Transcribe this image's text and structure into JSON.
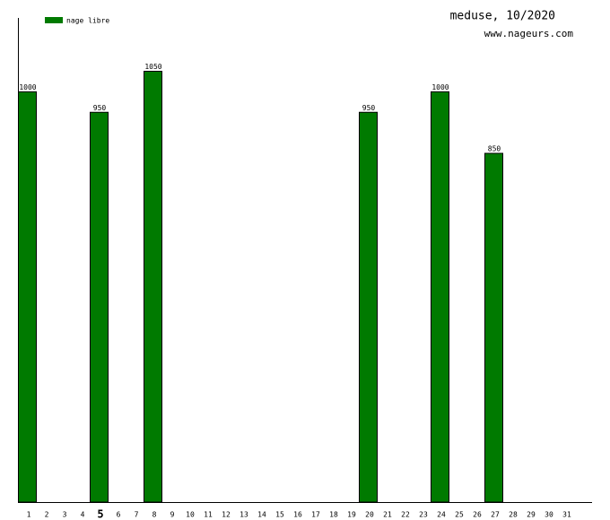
{
  "chart_data": {
    "type": "bar",
    "title": "meduse, 10/2020",
    "subtitle": "www.nageurs.com",
    "categories": [
      "1",
      "2",
      "3",
      "4",
      "5",
      "6",
      "7",
      "8",
      "9",
      "10",
      "11",
      "12",
      "13",
      "14",
      "15",
      "16",
      "17",
      "18",
      "19",
      "20",
      "21",
      "22",
      "23",
      "24",
      "25",
      "26",
      "27",
      "28",
      "29",
      "30",
      "31"
    ],
    "series": [
      {
        "name": "nage libre",
        "color": "#007a00",
        "values": [
          1000,
          null,
          null,
          null,
          950,
          null,
          null,
          1050,
          null,
          null,
          null,
          null,
          null,
          null,
          null,
          null,
          null,
          null,
          null,
          950,
          null,
          null,
          null,
          1000,
          null,
          null,
          850,
          null,
          null,
          null,
          null
        ]
      }
    ],
    "highlight_index": 4,
    "ylim": [
      0,
      1180
    ],
    "legend": "top-left",
    "grid": false
  }
}
